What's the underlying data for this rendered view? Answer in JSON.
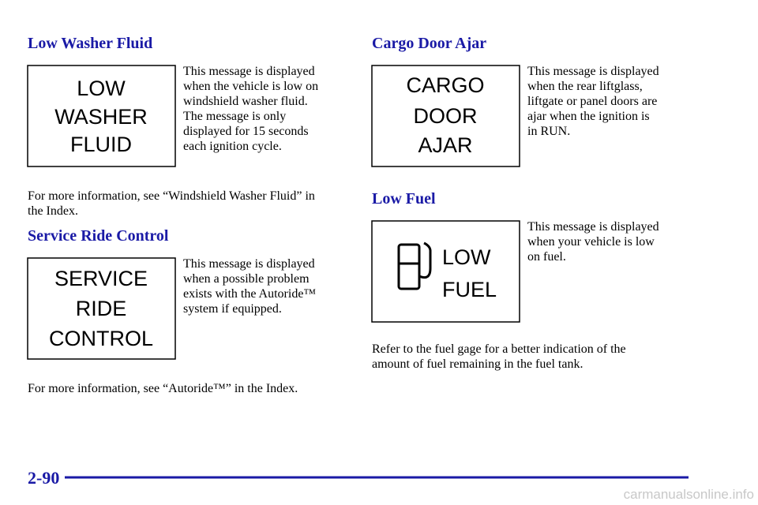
{
  "sections": [
    {
      "heading": "Low Washer Fluid",
      "display": [
        "LOW",
        "WASHER",
        "FLUID"
      ],
      "description": [
        "This message is displayed",
        "when the vehicle is low on",
        "windshield washer fluid.",
        "The message is only",
        "displayed for 15 seconds",
        "each ignition cycle."
      ],
      "note": [
        "For more information, see “Windshield Washer Fluid” in",
        "the Index."
      ]
    },
    {
      "heading": "Service Ride Control",
      "display": [
        "SERVICE",
        "RIDE",
        "CONTROL"
      ],
      "description": [
        "This message is displayed",
        "when a possible problem",
        "exists with the Autoride™",
        "system if equipped."
      ],
      "note": [
        "For more information, see “Autoride™” in the Index."
      ]
    },
    {
      "heading": "Cargo Door Ajar",
      "display": [
        "CARGO",
        "DOOR",
        "AJAR"
      ],
      "description": [
        "This message is displayed",
        "when the rear liftglass,",
        "liftgate or panel doors are",
        "ajar when the ignition is",
        "in RUN."
      ],
      "note": []
    },
    {
      "heading": "Low Fuel",
      "display": [
        "LOW",
        "FUEL"
      ],
      "description": [
        "This message is displayed",
        "when your vehicle is low",
        "on fuel."
      ],
      "note": [
        "Refer to the fuel gage for a better indication of the",
        "amount of fuel remaining in the fuel tank."
      ]
    }
  ],
  "footer": {
    "page_number": "2-90",
    "watermark": "carmanualsonline.info"
  }
}
